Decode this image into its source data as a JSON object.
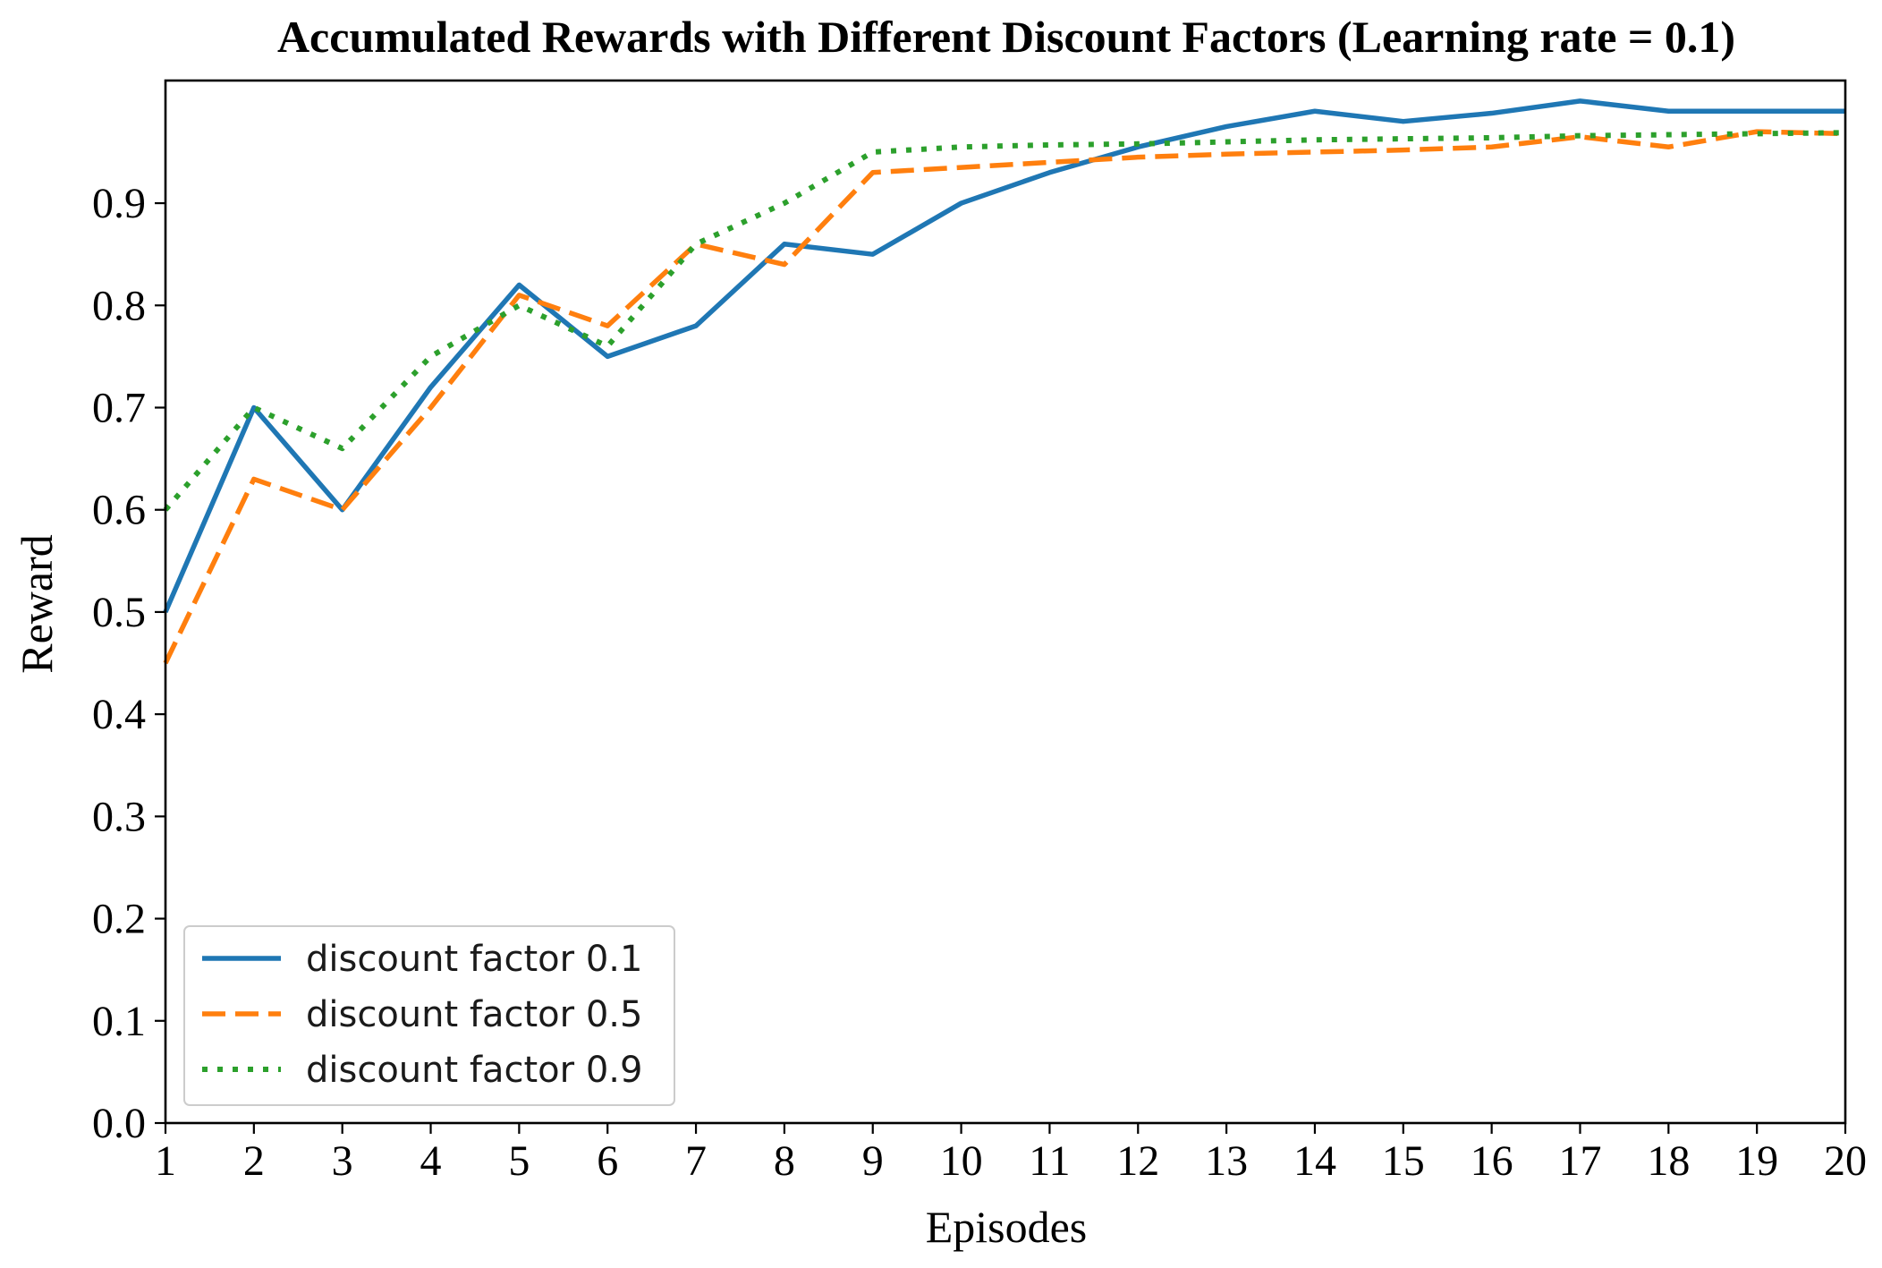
{
  "chart_data": {
    "type": "line",
    "title": "Accumulated Rewards with Different Discount Factors (Learning rate = 0.1)",
    "xlabel": "Episodes",
    "ylabel": "Reward",
    "x": [
      1,
      2,
      3,
      4,
      5,
      6,
      7,
      8,
      9,
      10,
      11,
      12,
      13,
      14,
      15,
      16,
      17,
      18,
      19,
      20
    ],
    "xlim": [
      1,
      20
    ],
    "ylim": [
      0,
      1.02
    ],
    "yticks": [
      0.0,
      0.1,
      0.2,
      0.3,
      0.4,
      0.5,
      0.6,
      0.7,
      0.8,
      0.9
    ],
    "ytick_labels": [
      "0.0",
      "0.1",
      "0.2",
      "0.3",
      "0.4",
      "0.5",
      "0.6",
      "0.7",
      "0.8",
      "0.9"
    ],
    "xtick_labels": [
      "1",
      "2",
      "3",
      "4",
      "5",
      "6",
      "7",
      "8",
      "9",
      "10",
      "11",
      "12",
      "13",
      "14",
      "15",
      "16",
      "17",
      "18",
      "19",
      "20"
    ],
    "grid": false,
    "legend_position": "lower-left",
    "series": [
      {
        "name": "discount factor 0.1",
        "color": "#1f77b4",
        "style": "solid",
        "values": [
          0.5,
          0.7,
          0.6,
          0.72,
          0.82,
          0.75,
          0.78,
          0.86,
          0.85,
          0.9,
          0.93,
          0.955,
          0.975,
          0.99,
          0.98,
          0.988,
          1.0,
          0.99,
          0.99,
          0.99
        ]
      },
      {
        "name": "discount factor 0.5",
        "color": "#ff7f0e",
        "style": "dashed",
        "values": [
          0.45,
          0.63,
          0.6,
          0.7,
          0.81,
          0.78,
          0.86,
          0.84,
          0.93,
          0.935,
          0.94,
          0.945,
          0.948,
          0.95,
          0.952,
          0.955,
          0.965,
          0.955,
          0.97,
          0.968
        ]
      },
      {
        "name": "discount factor 0.9",
        "color": "#2ca02c",
        "style": "dotted",
        "values": [
          0.6,
          0.7,
          0.66,
          0.75,
          0.8,
          0.76,
          0.86,
          0.9,
          0.95,
          0.955,
          0.957,
          0.958,
          0.96,
          0.962,
          0.963,
          0.964,
          0.966,
          0.967,
          0.968,
          0.969
        ]
      }
    ]
  }
}
